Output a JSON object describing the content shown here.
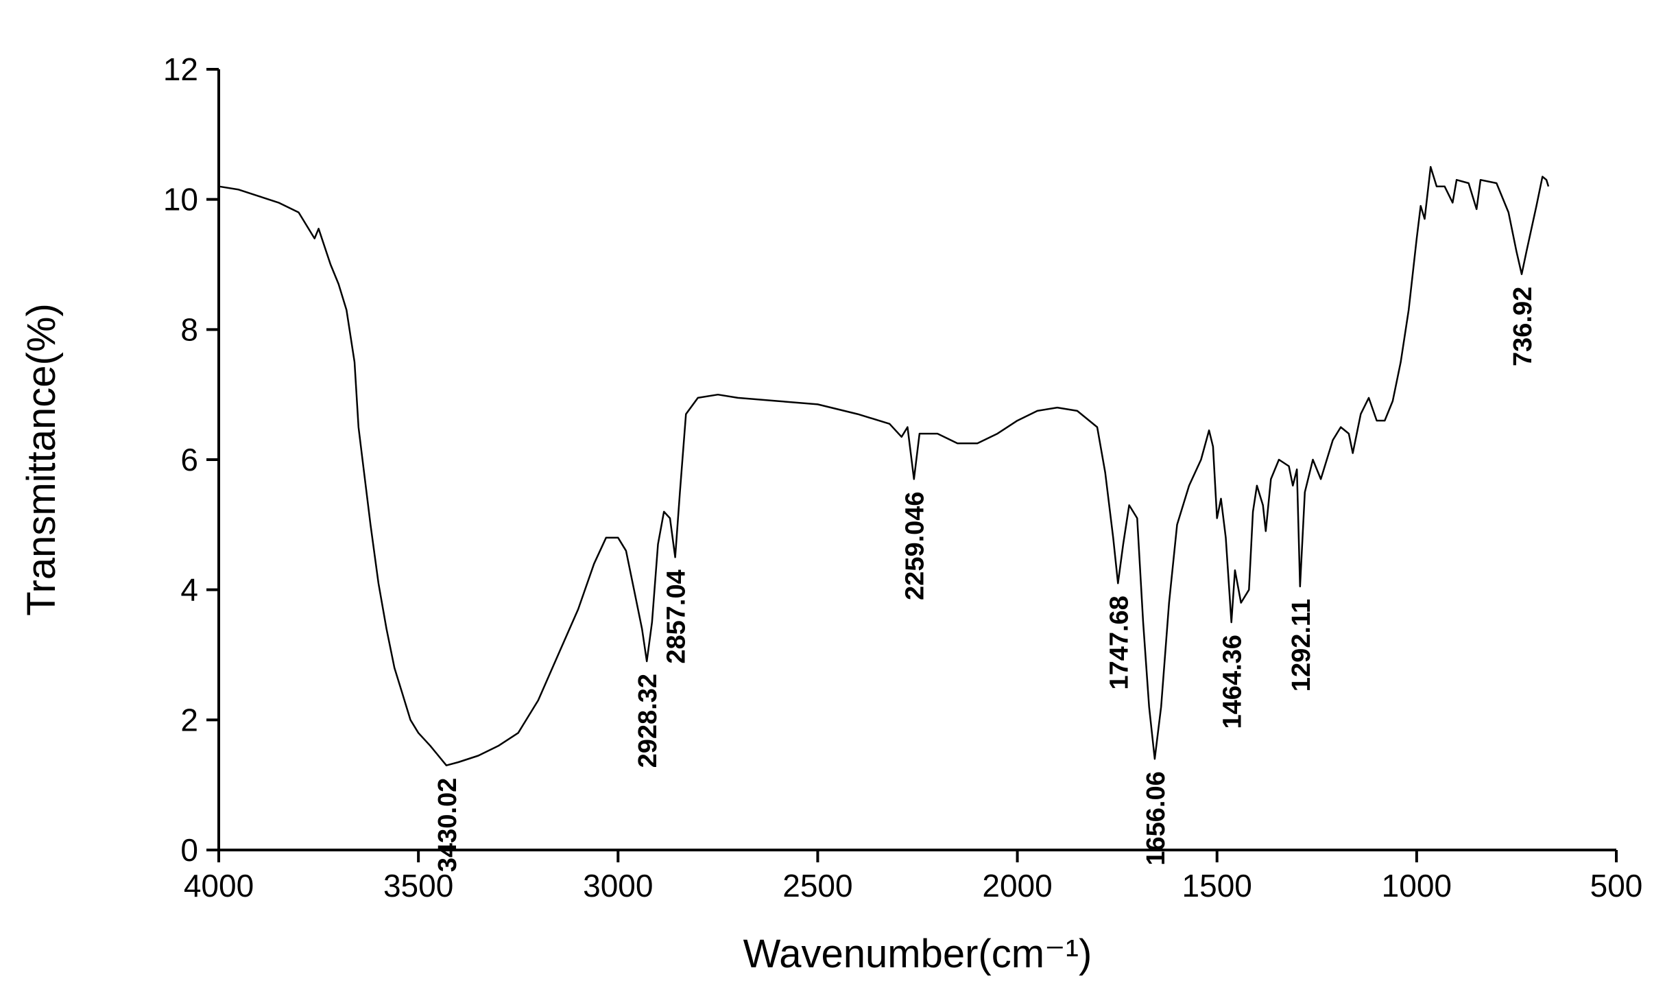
{
  "chart_data": {
    "type": "line",
    "x_label": "Wavenumber(cm⁻¹)",
    "y_label": "Transmittance(%)",
    "xlim": [
      4000,
      500
    ],
    "ylim": [
      0,
      12
    ],
    "xticks": [
      4000,
      3500,
      3000,
      2500,
      2000,
      1500,
      1000,
      500
    ],
    "yticks": [
      0,
      2,
      4,
      6,
      8,
      10,
      12
    ],
    "color": "#000000",
    "x": [
      4000,
      3950,
      3900,
      3850,
      3800,
      3760,
      3750,
      3720,
      3700,
      3680,
      3660,
      3650,
      3640,
      3620,
      3600,
      3580,
      3560,
      3540,
      3520,
      3500,
      3470,
      3430,
      3400,
      3350,
      3300,
      3250,
      3200,
      3150,
      3100,
      3060,
      3030,
      3000,
      2980,
      2960,
      2940,
      2928,
      2915,
      2900,
      2885,
      2870,
      2857,
      2845,
      2830,
      2800,
      2750,
      2700,
      2600,
      2500,
      2400,
      2320,
      2290,
      2275,
      2259,
      2245,
      2200,
      2150,
      2100,
      2050,
      2000,
      1950,
      1900,
      1850,
      1800,
      1780,
      1760,
      1748,
      1735,
      1720,
      1700,
      1685,
      1670,
      1656,
      1640,
      1620,
      1600,
      1570,
      1540,
      1520,
      1510,
      1500,
      1490,
      1478,
      1464,
      1455,
      1440,
      1420,
      1410,
      1400,
      1385,
      1378,
      1365,
      1345,
      1320,
      1310,
      1300,
      1292,
      1280,
      1260,
      1240,
      1210,
      1190,
      1170,
      1160,
      1140,
      1120,
      1100,
      1080,
      1060,
      1040,
      1020,
      1000,
      990,
      980,
      965,
      950,
      930,
      910,
      900,
      870,
      850,
      840,
      800,
      770,
      750,
      737,
      725,
      700,
      685,
      675,
      670
    ],
    "values": [
      10.2,
      10.15,
      10.05,
      9.95,
      9.8,
      9.4,
      9.55,
      9.0,
      8.7,
      8.3,
      7.5,
      6.5,
      6.0,
      5.0,
      4.1,
      3.4,
      2.8,
      2.4,
      2.0,
      1.8,
      1.6,
      1.3,
      1.35,
      1.45,
      1.6,
      1.8,
      2.3,
      3.0,
      3.7,
      4.4,
      4.8,
      4.8,
      4.6,
      4.0,
      3.4,
      2.9,
      3.5,
      4.7,
      5.2,
      5.1,
      4.5,
      5.5,
      6.7,
      6.95,
      7.0,
      6.95,
      6.9,
      6.85,
      6.7,
      6.55,
      6.35,
      6.5,
      5.7,
      6.4,
      6.4,
      6.25,
      6.25,
      6.4,
      6.6,
      6.75,
      6.8,
      6.75,
      6.5,
      5.8,
      4.8,
      4.1,
      4.7,
      5.3,
      5.1,
      3.5,
      2.2,
      1.4,
      2.2,
      3.8,
      5.0,
      5.6,
      6.0,
      6.45,
      6.2,
      5.1,
      5.4,
      4.8,
      3.5,
      4.3,
      3.8,
      4.0,
      5.2,
      5.6,
      5.3,
      4.9,
      5.7,
      6.0,
      5.9,
      5.6,
      5.85,
      4.05,
      5.5,
      6.0,
      5.7,
      6.3,
      6.5,
      6.4,
      6.1,
      6.7,
      6.95,
      6.6,
      6.6,
      6.9,
      7.5,
      8.3,
      9.4,
      9.9,
      9.7,
      10.5,
      10.2,
      10.2,
      9.95,
      10.3,
      10.25,
      9.85,
      10.3,
      10.25,
      9.8,
      9.2,
      8.85,
      9.2,
      9.9,
      10.35,
      10.3,
      10.2
    ],
    "annotations": [
      {
        "text": "3430.02",
        "x": 3430.02,
        "y": 1.3
      },
      {
        "text": "2928.32",
        "x": 2928.32,
        "y": 2.9
      },
      {
        "text": "2857.04",
        "x": 2857.04,
        "y": 4.5
      },
      {
        "text": "2259.046",
        "x": 2259.046,
        "y": 5.7
      },
      {
        "text": "1747.68",
        "x": 1747.68,
        "y": 4.1
      },
      {
        "text": "1656.06",
        "x": 1656.06,
        "y": 1.4
      },
      {
        "text": "1464.36",
        "x": 1464.36,
        "y": 3.5
      },
      {
        "text": "1292.11",
        "x": 1292.11,
        "y": 4.05
      },
      {
        "text": "736.92",
        "x": 736.92,
        "y": 8.85
      }
    ]
  }
}
